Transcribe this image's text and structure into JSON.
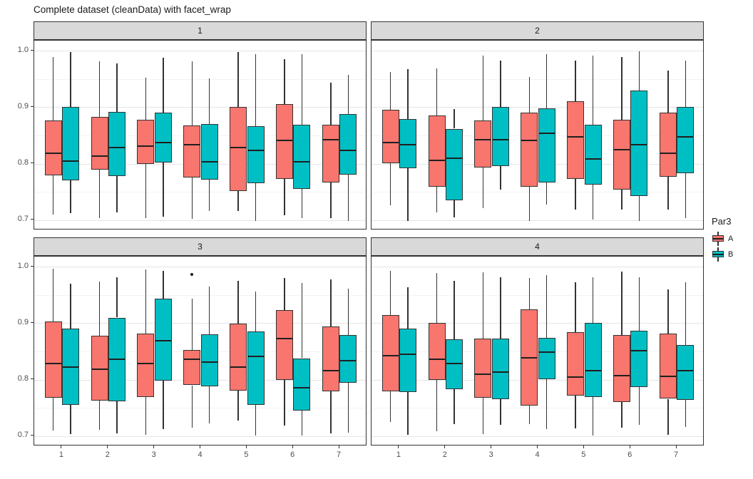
{
  "chart_data": {
    "type": "boxplot",
    "title": "Complete dataset (cleanData) with facet_wrap",
    "xlabel": "",
    "ylabel": "",
    "x_tick_labels": [
      "1",
      "2",
      "3",
      "4",
      "5",
      "6",
      "7"
    ],
    "y_tick_labels": [
      "1.0",
      "0.9",
      "0.8",
      "0.7"
    ],
    "y_tick_values": [
      1.0,
      0.9,
      0.8,
      0.7
    ],
    "y_major_gridlines": [
      0.7,
      0.8,
      0.9,
      1.0
    ],
    "y_minor_gridlines": [
      0.75,
      0.85,
      0.95
    ],
    "y_range": [
      0.682,
      1.018
    ],
    "grid": "on",
    "legend": {
      "title": "Par3",
      "position": "right",
      "entries": [
        {
          "label": "A",
          "color": "#F8766D"
        },
        {
          "label": "B",
          "color": "#00BFC4"
        }
      ]
    },
    "facets": [
      {
        "label": "1",
        "boxes": [
          {
            "x": 1,
            "g": "A",
            "lo": 0.71,
            "q1": 0.779,
            "me": 0.818,
            "q3": 0.877,
            "hi": 0.989
          },
          {
            "x": 1,
            "g": "B",
            "lo": 0.712,
            "q1": 0.771,
            "me": 0.804,
            "q3": 0.901,
            "hi": 0.998
          },
          {
            "x": 2,
            "g": "A",
            "lo": 0.703,
            "q1": 0.789,
            "me": 0.814,
            "q3": 0.883,
            "hi": 0.981
          },
          {
            "x": 2,
            "g": "B",
            "lo": 0.713,
            "q1": 0.778,
            "me": 0.829,
            "q3": 0.892,
            "hi": 0.977
          },
          {
            "x": 3,
            "g": "A",
            "lo": 0.703,
            "q1": 0.8,
            "me": 0.831,
            "q3": 0.878,
            "hi": 0.952
          },
          {
            "x": 3,
            "g": "B",
            "lo": 0.706,
            "q1": 0.802,
            "me": 0.838,
            "q3": 0.89,
            "hi": 0.988
          },
          {
            "x": 4,
            "g": "A",
            "lo": 0.702,
            "q1": 0.776,
            "me": 0.833,
            "q3": 0.868,
            "hi": 0.981
          },
          {
            "x": 4,
            "g": "B",
            "lo": 0.716,
            "q1": 0.772,
            "me": 0.803,
            "q3": 0.87,
            "hi": 0.951
          },
          {
            "x": 5,
            "g": "A",
            "lo": 0.716,
            "q1": 0.751,
            "me": 0.829,
            "q3": 0.901,
            "hi": 0.998
          },
          {
            "x": 5,
            "g": "B",
            "lo": 0.699,
            "q1": 0.765,
            "me": 0.824,
            "q3": 0.866,
            "hi": 0.994
          },
          {
            "x": 6,
            "g": "A",
            "lo": 0.708,
            "q1": 0.773,
            "me": 0.841,
            "q3": 0.905,
            "hi": 0.985
          },
          {
            "x": 6,
            "g": "B",
            "lo": 0.704,
            "q1": 0.755,
            "me": 0.803,
            "q3": 0.869,
            "hi": 0.994
          },
          {
            "x": 7,
            "g": "A",
            "lo": 0.704,
            "q1": 0.767,
            "me": 0.843,
            "q3": 0.869,
            "hi": 0.944
          },
          {
            "x": 7,
            "g": "B",
            "lo": 0.699,
            "q1": 0.78,
            "me": 0.823,
            "q3": 0.888,
            "hi": 0.958
          }
        ]
      },
      {
        "label": "2",
        "boxes": [
          {
            "x": 1,
            "g": "A",
            "lo": 0.726,
            "q1": 0.801,
            "me": 0.837,
            "q3": 0.896,
            "hi": 0.963
          },
          {
            "x": 1,
            "g": "B",
            "lo": 0.699,
            "q1": 0.792,
            "me": 0.834,
            "q3": 0.879,
            "hi": 0.968
          },
          {
            "x": 2,
            "g": "A",
            "lo": 0.713,
            "q1": 0.759,
            "me": 0.806,
            "q3": 0.885,
            "hi": 0.969
          },
          {
            "x": 2,
            "g": "B",
            "lo": 0.705,
            "q1": 0.735,
            "me": 0.81,
            "q3": 0.862,
            "hi": 0.897
          },
          {
            "x": 3,
            "g": "A",
            "lo": 0.721,
            "q1": 0.793,
            "me": 0.843,
            "q3": 0.876,
            "hi": 0.992
          },
          {
            "x": 3,
            "g": "B",
            "lo": 0.754,
            "q1": 0.796,
            "me": 0.843,
            "q3": 0.9,
            "hi": 0.983
          },
          {
            "x": 4,
            "g": "A",
            "lo": 0.698,
            "q1": 0.759,
            "me": 0.841,
            "q3": 0.89,
            "hi": 0.954
          },
          {
            "x": 4,
            "g": "B",
            "lo": 0.728,
            "q1": 0.767,
            "me": 0.854,
            "q3": 0.898,
            "hi": 0.994
          },
          {
            "x": 5,
            "g": "A",
            "lo": 0.719,
            "q1": 0.773,
            "me": 0.847,
            "q3": 0.911,
            "hi": 0.983
          },
          {
            "x": 5,
            "g": "B",
            "lo": 0.701,
            "q1": 0.763,
            "me": 0.808,
            "q3": 0.869,
            "hi": 0.992
          },
          {
            "x": 6,
            "g": "A",
            "lo": 0.719,
            "q1": 0.754,
            "me": 0.825,
            "q3": 0.878,
            "hi": 0.989
          },
          {
            "x": 6,
            "g": "B",
            "lo": 0.699,
            "q1": 0.743,
            "me": 0.833,
            "q3": 0.93,
            "hi": 0.999
          },
          {
            "x": 7,
            "g": "A",
            "lo": 0.719,
            "q1": 0.777,
            "me": 0.818,
            "q3": 0.89,
            "hi": 0.965
          },
          {
            "x": 7,
            "g": "B",
            "lo": 0.704,
            "q1": 0.783,
            "me": 0.848,
            "q3": 0.901,
            "hi": 0.983
          }
        ]
      },
      {
        "label": "3",
        "boxes": [
          {
            "x": 1,
            "g": "A",
            "lo": 0.71,
            "q1": 0.768,
            "me": 0.828,
            "q3": 0.903,
            "hi": 0.997
          },
          {
            "x": 1,
            "g": "B",
            "lo": 0.704,
            "q1": 0.755,
            "me": 0.822,
            "q3": 0.891,
            "hi": 0.97
          },
          {
            "x": 2,
            "g": "A",
            "lo": 0.711,
            "q1": 0.763,
            "me": 0.818,
            "q3": 0.878,
            "hi": 0.974
          },
          {
            "x": 2,
            "g": "B",
            "lo": 0.705,
            "q1": 0.761,
            "me": 0.836,
            "q3": 0.91,
            "hi": 0.981
          },
          {
            "x": 3,
            "g": "A",
            "lo": 0.702,
            "q1": 0.769,
            "me": 0.829,
            "q3": 0.881,
            "hi": 0.995
          },
          {
            "x": 3,
            "g": "B",
            "lo": 0.712,
            "q1": 0.798,
            "me": 0.869,
            "q3": 0.944,
            "hi": 0.993
          },
          {
            "x": 4,
            "g": "A",
            "lo": 0.715,
            "q1": 0.79,
            "me": 0.836,
            "q3": 0.852,
            "hi": 0.943,
            "out": [
              0.986
            ]
          },
          {
            "x": 4,
            "g": "B",
            "lo": 0.722,
            "q1": 0.788,
            "me": 0.831,
            "q3": 0.88,
            "hi": 0.965
          },
          {
            "x": 5,
            "g": "A",
            "lo": 0.727,
            "q1": 0.781,
            "me": 0.822,
            "q3": 0.899,
            "hi": 0.975
          },
          {
            "x": 5,
            "g": "B",
            "lo": 0.701,
            "q1": 0.755,
            "me": 0.841,
            "q3": 0.885,
            "hi": 0.956
          },
          {
            "x": 6,
            "g": "A",
            "lo": 0.718,
            "q1": 0.8,
            "me": 0.873,
            "q3": 0.923,
            "hi": 0.98
          },
          {
            "x": 6,
            "g": "B",
            "lo": 0.701,
            "q1": 0.745,
            "me": 0.786,
            "q3": 0.838,
            "hi": 0.971
          },
          {
            "x": 7,
            "g": "A",
            "lo": 0.705,
            "q1": 0.779,
            "me": 0.816,
            "q3": 0.894,
            "hi": 0.978
          },
          {
            "x": 7,
            "g": "B",
            "lo": 0.706,
            "q1": 0.794,
            "me": 0.833,
            "q3": 0.879,
            "hi": 0.961
          }
        ]
      },
      {
        "label": "4",
        "boxes": [
          {
            "x": 1,
            "g": "A",
            "lo": 0.725,
            "q1": 0.779,
            "me": 0.843,
            "q3": 0.915,
            "hi": 0.993
          },
          {
            "x": 1,
            "g": "B",
            "lo": 0.702,
            "q1": 0.778,
            "me": 0.845,
            "q3": 0.89,
            "hi": 0.964
          },
          {
            "x": 2,
            "g": "A",
            "lo": 0.708,
            "q1": 0.8,
            "me": 0.836,
            "q3": 0.9,
            "hi": 0.989
          },
          {
            "x": 2,
            "g": "B",
            "lo": 0.721,
            "q1": 0.783,
            "me": 0.829,
            "q3": 0.872,
            "hi": 0.975
          },
          {
            "x": 3,
            "g": "A",
            "lo": 0.704,
            "q1": 0.768,
            "me": 0.809,
            "q3": 0.873,
            "hi": 0.99
          },
          {
            "x": 3,
            "g": "B",
            "lo": 0.72,
            "q1": 0.765,
            "me": 0.814,
            "q3": 0.873,
            "hi": 0.982
          },
          {
            "x": 4,
            "g": "A",
            "lo": 0.721,
            "q1": 0.754,
            "me": 0.839,
            "q3": 0.925,
            "hi": 0.98
          },
          {
            "x": 4,
            "g": "B",
            "lo": 0.712,
            "q1": 0.801,
            "me": 0.849,
            "q3": 0.874,
            "hi": 0.985
          },
          {
            "x": 5,
            "g": "A",
            "lo": 0.714,
            "q1": 0.772,
            "me": 0.805,
            "q3": 0.884,
            "hi": 0.973
          },
          {
            "x": 5,
            "g": "B",
            "lo": 0.701,
            "q1": 0.769,
            "me": 0.816,
            "q3": 0.901,
            "hi": 0.981
          },
          {
            "x": 6,
            "g": "A",
            "lo": 0.715,
            "q1": 0.76,
            "me": 0.807,
            "q3": 0.879,
            "hi": 0.992
          },
          {
            "x": 6,
            "g": "B",
            "lo": 0.72,
            "q1": 0.787,
            "me": 0.851,
            "q3": 0.887,
            "hi": 0.982
          },
          {
            "x": 7,
            "g": "A",
            "lo": 0.702,
            "q1": 0.766,
            "me": 0.806,
            "q3": 0.881,
            "hi": 0.96
          },
          {
            "x": 7,
            "g": "B",
            "lo": 0.716,
            "q1": 0.764,
            "me": 0.816,
            "q3": 0.862,
            "hi": 0.973
          }
        ]
      }
    ]
  }
}
